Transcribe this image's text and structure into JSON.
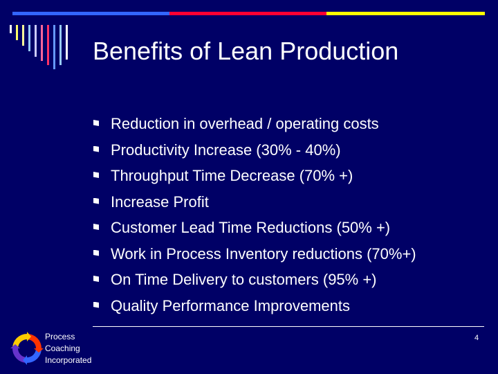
{
  "slide": {
    "title": "Benefits of Lean Production",
    "bullets": [
      "Reduction in overhead / operating costs",
      "Productivity Increase (30% - 40%)",
      "Throughput Time Decrease (70% +)",
      "Increase Profit",
      "Customer Lead Time Reductions (50% +)",
      "Work in Process Inventory reductions (70%+)",
      "On Time Delivery to customers (95% +)",
      "Quality Performance Improvements"
    ],
    "page_number": "4"
  },
  "footer": {
    "company_lines": [
      "Process",
      "Coaching",
      "Incorporated"
    ]
  },
  "colors": {
    "background": "#000066",
    "band_blue": "#3366ff",
    "band_red": "#ff0033",
    "band_yellow": "#ffff00",
    "text": "#ffffff"
  },
  "decor": {
    "stripe_colors": [
      "#ffffff",
      "#ffff66",
      "#ffff99",
      "#99ccff",
      "#ccccff",
      "#ff6699",
      "#ff3366",
      "#6699ff",
      "#99ccff",
      "#ffffff"
    ],
    "logo_icon": "circular-arrows-logo-icon"
  }
}
